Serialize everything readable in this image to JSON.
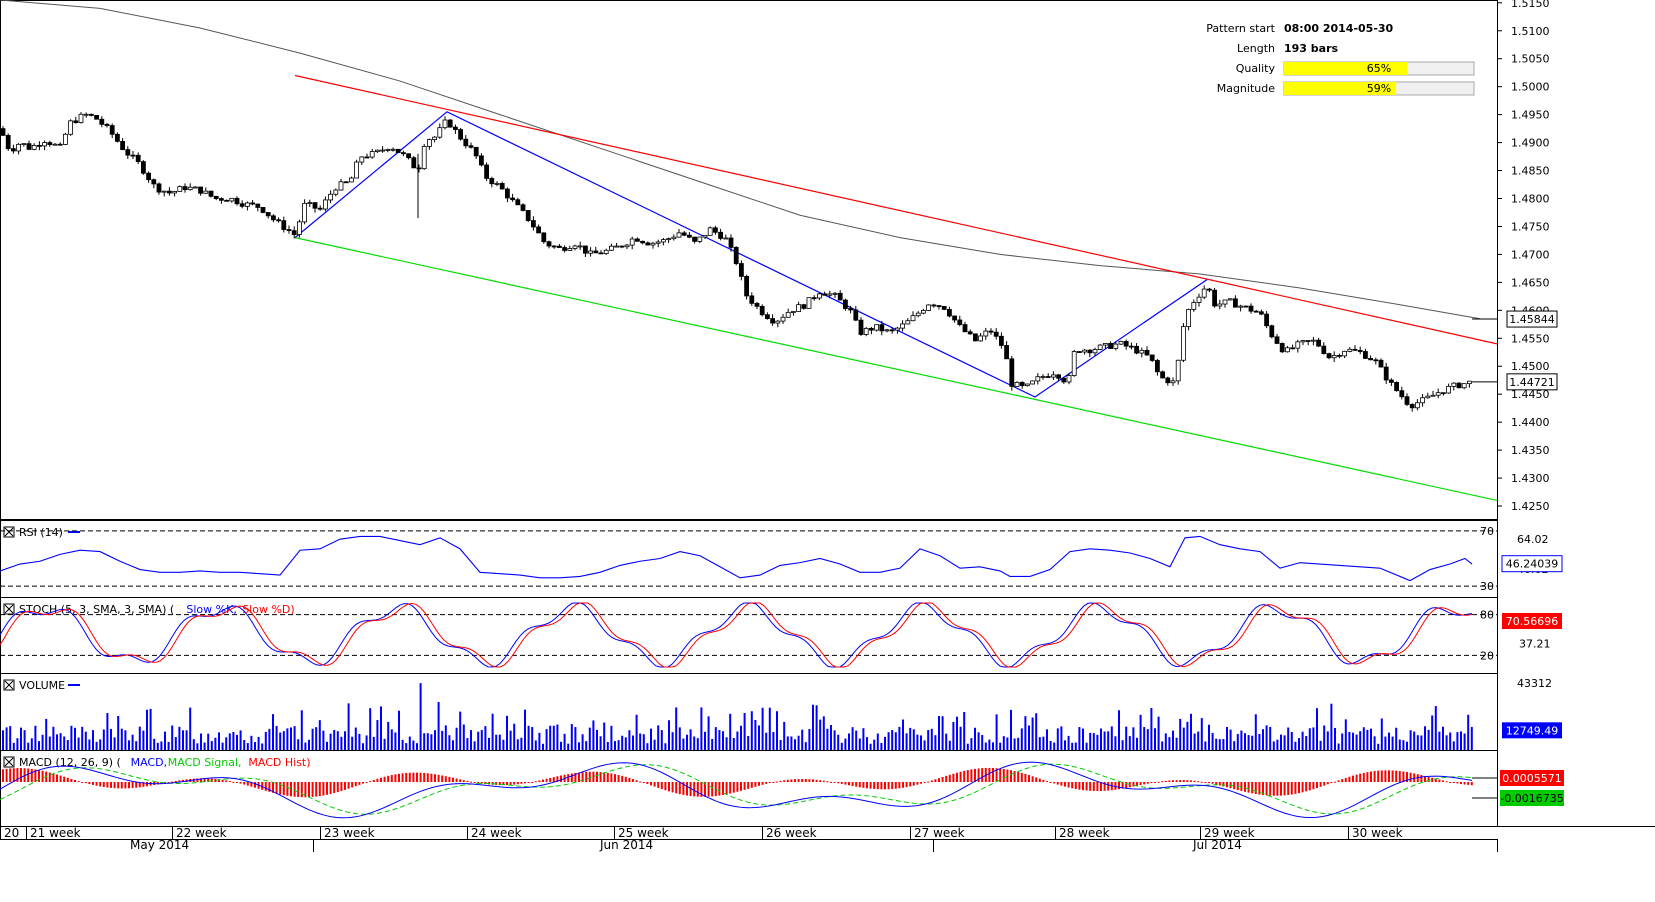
{
  "chart_data": {
    "type": "candlestick",
    "title": "",
    "time_axis": {
      "week_labels": [
        "20",
        "21 week",
        "22 week",
        "23 week",
        "24 week",
        "25 week",
        "26 week",
        "27 week",
        "28 week",
        "29 week",
        "30 week"
      ],
      "month_labels": [
        "May 2014",
        "Jun 2014",
        "Jul 2014"
      ]
    },
    "price_axis": {
      "ticks": [
        "1.5150",
        "1.5100",
        "1.5050",
        "1.5000",
        "1.4950",
        "1.4900",
        "1.4850",
        "1.4800",
        "1.4750",
        "1.4700",
        "1.4650",
        "1.4600",
        "1.4550",
        "1.4500",
        "1.4450",
        "1.4400",
        "1.4350",
        "1.4300",
        "1.4250"
      ],
      "ylim": [
        1.4225,
        1.5155
      ]
    },
    "price_tags": [
      {
        "value": "1.45844",
        "series": "moving average",
        "color": "#000000"
      },
      {
        "value": "1.44721",
        "series": "last close",
        "color": "#000000"
      }
    ],
    "pattern_info": {
      "rows": [
        {
          "label": "Pattern start",
          "value": "08:00 2014-05-30"
        },
        {
          "label": "Length",
          "value": "193 bars"
        },
        {
          "label": "Quality",
          "value": "65%",
          "fraction": 0.65
        },
        {
          "label": "Magnitude",
          "value": "59%",
          "fraction": 0.59
        }
      ]
    },
    "close_series": [
      [
        0,
        1.4925
      ],
      [
        10,
        1.4885
      ],
      [
        20,
        1.49
      ],
      [
        30,
        1.489
      ],
      [
        45,
        1.4905
      ],
      [
        60,
        1.489
      ],
      [
        70,
        1.4935
      ],
      [
        85,
        1.495
      ],
      [
        95,
        1.4945
      ],
      [
        110,
        1.492
      ],
      [
        125,
        1.4885
      ],
      [
        140,
        1.486
      ],
      [
        155,
        1.482
      ],
      [
        170,
        1.481
      ],
      [
        185,
        1.482
      ],
      [
        200,
        1.4815
      ],
      [
        215,
        1.48
      ],
      [
        230,
        1.48
      ],
      [
        245,
        1.479
      ],
      [
        260,
        1.4785
      ],
      [
        275,
        1.476
      ],
      [
        295,
        1.4735
      ],
      [
        305,
        1.479
      ],
      [
        320,
        1.478
      ],
      [
        335,
        1.482
      ],
      [
        350,
        1.483
      ],
      [
        360,
        1.4875
      ],
      [
        375,
        1.488
      ],
      [
        390,
        1.4895
      ],
      [
        405,
        1.4875
      ],
      [
        418,
        1.485
      ],
      [
        425,
        1.4905
      ],
      [
        435,
        1.491
      ],
      [
        447,
        1.494
      ],
      [
        460,
        1.491
      ],
      [
        475,
        1.488
      ],
      [
        485,
        1.484
      ],
      [
        500,
        1.482
      ],
      [
        515,
        1.479
      ],
      [
        530,
        1.476
      ],
      [
        545,
        1.472
      ],
      [
        560,
        1.471
      ],
      [
        575,
        1.472
      ],
      [
        590,
        1.47
      ],
      [
        605,
        1.4705
      ],
      [
        620,
        1.4715
      ],
      [
        635,
        1.473
      ],
      [
        650,
        1.472
      ],
      [
        665,
        1.4725
      ],
      [
        680,
        1.474
      ],
      [
        695,
        1.472
      ],
      [
        710,
        1.4745
      ],
      [
        725,
        1.473
      ],
      [
        738,
        1.468
      ],
      [
        745,
        1.463
      ],
      [
        760,
        1.46
      ],
      [
        775,
        1.458
      ],
      [
        790,
        1.46
      ],
      [
        805,
        1.461
      ],
      [
        820,
        1.4635
      ],
      [
        835,
        1.4625
      ],
      [
        850,
        1.46
      ],
      [
        860,
        1.456
      ],
      [
        875,
        1.457
      ],
      [
        890,
        1.456
      ],
      [
        905,
        1.4575
      ],
      [
        915,
        1.459
      ],
      [
        930,
        1.4615
      ],
      [
        945,
        1.4605
      ],
      [
        960,
        1.457
      ],
      [
        975,
        1.4545
      ],
      [
        990,
        1.4565
      ],
      [
        1005,
        1.453
      ],
      [
        1010,
        1.447
      ],
      [
        1025,
        1.446
      ],
      [
        1040,
        1.448
      ],
      [
        1055,
        1.449
      ],
      [
        1068,
        1.447
      ],
      [
        1075,
        1.453
      ],
      [
        1090,
        1.453
      ],
      [
        1105,
        1.4535
      ],
      [
        1120,
        1.454
      ],
      [
        1135,
        1.453
      ],
      [
        1150,
        1.4515
      ],
      [
        1160,
        1.448
      ],
      [
        1175,
        1.447
      ],
      [
        1185,
        1.459
      ],
      [
        1195,
        1.462
      ],
      [
        1207,
        1.4645
      ],
      [
        1215,
        1.461
      ],
      [
        1230,
        1.4615
      ],
      [
        1245,
        1.4605
      ],
      [
        1260,
        1.4595
      ],
      [
        1270,
        1.456
      ],
      [
        1285,
        1.4525
      ],
      [
        1300,
        1.454
      ],
      [
        1315,
        1.4545
      ],
      [
        1330,
        1.4515
      ],
      [
        1345,
        1.453
      ],
      [
        1360,
        1.4525
      ],
      [
        1375,
        1.451
      ],
      [
        1390,
        1.447
      ],
      [
        1400,
        1.445
      ],
      [
        1410,
        1.443
      ],
      [
        1425,
        1.444
      ],
      [
        1440,
        1.4455
      ],
      [
        1455,
        1.4465
      ],
      [
        1472,
        1.4472
      ]
    ],
    "moving_average": [
      [
        0,
        1.5155
      ],
      [
        100,
        1.514
      ],
      [
        200,
        1.5105
      ],
      [
        300,
        1.506
      ],
      [
        400,
        1.501
      ],
      [
        500,
        1.495
      ],
      [
        600,
        1.489
      ],
      [
        700,
        1.483
      ],
      [
        800,
        1.477
      ],
      [
        900,
        1.473
      ],
      [
        1000,
        1.47
      ],
      [
        1100,
        1.468
      ],
      [
        1200,
        1.4665
      ],
      [
        1300,
        1.464
      ],
      [
        1400,
        1.461
      ],
      [
        1480,
        1.4585
      ]
    ],
    "pattern_lines": {
      "upper_resistance": [
        [
          295,
          1.502
        ],
        [
          1497,
          1.454
        ]
      ],
      "lower_support": [
        [
          295,
          1.473
        ],
        [
          1497,
          1.426
        ]
      ],
      "zigzag": [
        [
          295,
          1.473
        ],
        [
          447,
          1.4955
        ],
        [
          1035,
          1.4445
        ],
        [
          1207,
          1.4655
        ]
      ]
    },
    "panels": [
      {
        "name": "RSI",
        "title": "RSI (14)",
        "legend": [
          {
            "name": "RSI (14)",
            "color": "#0000ff"
          }
        ],
        "levels": [
          "70",
          "30"
        ],
        "tick_labels": [
          "64.02",
          "46.02"
        ],
        "value_tag": {
          "value": "46.24039",
          "color": "#0000ff"
        },
        "lines": [
          {
            "name": "RSI",
            "color": "#0000ff",
            "values": [
              [
                0,
                41
              ],
              [
                20,
                46
              ],
              [
                40,
                48
              ],
              [
                60,
                53
              ],
              [
                80,
                56
              ],
              [
                100,
                55
              ],
              [
                120,
                48
              ],
              [
                140,
                42
              ],
              [
                160,
                40
              ],
              [
                180,
                40
              ],
              [
                200,
                41
              ],
              [
                220,
                40
              ],
              [
                240,
                40
              ],
              [
                260,
                39
              ],
              [
                280,
                38
              ],
              [
                300,
                56
              ],
              [
                320,
                57
              ],
              [
                340,
                64
              ],
              [
                360,
                66
              ],
              [
                380,
                66
              ],
              [
                400,
                63
              ],
              [
                420,
                60
              ],
              [
                440,
                65
              ],
              [
                460,
                57
              ],
              [
                480,
                40
              ],
              [
                500,
                39
              ],
              [
                520,
                38
              ],
              [
                540,
                36
              ],
              [
                560,
                36
              ],
              [
                580,
                37
              ],
              [
                600,
                40
              ],
              [
                620,
                45
              ],
              [
                640,
                48
              ],
              [
                660,
                50
              ],
              [
                680,
                55
              ],
              [
                700,
                52
              ],
              [
                720,
                44
              ],
              [
                740,
                36
              ],
              [
                760,
                38
              ],
              [
                780,
                45
              ],
              [
                800,
                47
              ],
              [
                820,
                50
              ],
              [
                840,
                46
              ],
              [
                860,
                40
              ],
              [
                880,
                40
              ],
              [
                900,
                43
              ],
              [
                920,
                57
              ],
              [
                940,
                52
              ],
              [
                960,
                43
              ],
              [
                980,
                44
              ],
              [
                1000,
                41
              ],
              [
                1010,
                37
              ],
              [
                1030,
                37
              ],
              [
                1050,
                42
              ],
              [
                1070,
                55
              ],
              [
                1090,
                57
              ],
              [
                1110,
                56
              ],
              [
                1130,
                54
              ],
              [
                1150,
                50
              ],
              [
                1170,
                44
              ],
              [
                1185,
                65
              ],
              [
                1200,
                66
              ],
              [
                1220,
                60
              ],
              [
                1240,
                57
              ],
              [
                1260,
                55
              ],
              [
                1280,
                43
              ],
              [
                1300,
                47
              ],
              [
                1320,
                46
              ],
              [
                1340,
                45
              ],
              [
                1360,
                44
              ],
              [
                1380,
                43
              ],
              [
                1400,
                37
              ],
              [
                1410,
                34
              ],
              [
                1430,
                42
              ],
              [
                1450,
                46
              ],
              [
                1465,
                50
              ],
              [
                1472,
                46
              ]
            ]
          }
        ]
      },
      {
        "name": "STOCH",
        "title": "STOCH (5, 3, SMA, 3, SMA)",
        "legend": [
          {
            "name": "Slow %K",
            "color": "#0000ff"
          },
          {
            "name": "Slow %D",
            "color": "#ff0000"
          }
        ],
        "levels": [
          "80",
          "20"
        ],
        "tick_labels": [
          "37.21"
        ],
        "value_tag": {
          "value": "70.56696",
          "color": "#ff0000"
        },
        "cycles": [
          30,
          90,
          150,
          210,
          270,
          330,
          390,
          440,
          500,
          570,
          630,
          690,
          760,
          820,
          880,
          940,
          980,
          1040,
          1085,
          1140,
          1200,
          1245,
          1305,
          1360,
          1440
        ]
      },
      {
        "name": "VOLUME",
        "title": "VOLUME",
        "legend": [
          {
            "name": "VOLUME",
            "color": "#0000ff"
          }
        ],
        "tick_labels": [
          "43312"
        ],
        "value_tag": {
          "value": "12749.49",
          "color": "#0000ff"
        },
        "peaks": [
          [
            420,
            43312
          ],
          [
            1330,
            30000
          ],
          [
            1010,
            26000
          ],
          [
            745,
            24000
          ]
        ]
      },
      {
        "name": "MACD",
        "title": "MACD (12, 26, 9)",
        "legend": [
          {
            "name": "MACD",
            "color": "#0000ff"
          },
          {
            "name": "MACD Signal",
            "color": "#00cc00"
          },
          {
            "name": "MACD Hist",
            "color": "#ff0000"
          }
        ],
        "value_tags": [
          {
            "value": "0.0005571",
            "color": "#ff0000"
          },
          {
            "value": "-0.0016735",
            "color": "#00cc00"
          }
        ]
      }
    ],
    "grid": false
  }
}
